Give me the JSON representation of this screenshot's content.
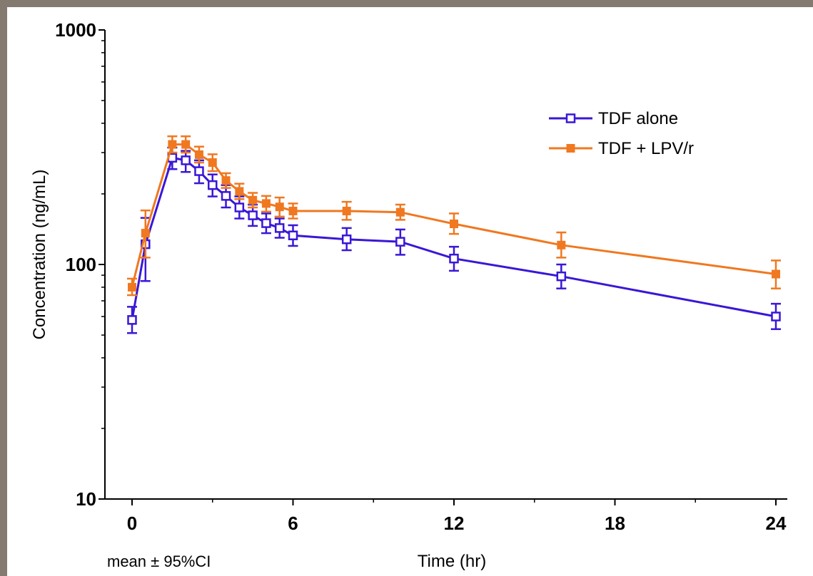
{
  "chart_data": {
    "type": "line",
    "title": "",
    "xlabel": "Time (hr)",
    "ylabel": "Concentration (ng/mL)",
    "note": "mean ± 95%CI",
    "x_scale": "linear",
    "y_scale": "log",
    "xlim": [
      0,
      24
    ],
    "ylim": [
      10,
      1000
    ],
    "x_ticks": [
      0,
      6,
      12,
      18,
      24
    ],
    "x_tick_labels": [
      "0",
      "6",
      "12",
      "18",
      "24"
    ],
    "y_ticks": [
      10,
      100,
      1000
    ],
    "y_tick_labels": [
      "10",
      "100",
      "1000"
    ],
    "grid": false,
    "legend_position": "top-right",
    "series": [
      {
        "name": "TDF alone",
        "color": "#3a17d6",
        "marker": "open-square",
        "points": [
          {
            "x": 0,
            "y": 58,
            "lo": 51,
            "hi": 66
          },
          {
            "x": 0.5,
            "y": 122,
            "lo": 85,
            "hi": 158
          },
          {
            "x": 1.5,
            "y": 285,
            "lo": 255,
            "hi": 315
          },
          {
            "x": 2,
            "y": 278,
            "lo": 248,
            "hi": 305
          },
          {
            "x": 2.5,
            "y": 250,
            "lo": 222,
            "hi": 278
          },
          {
            "x": 3,
            "y": 218,
            "lo": 195,
            "hi": 242
          },
          {
            "x": 3.5,
            "y": 196,
            "lo": 175,
            "hi": 218
          },
          {
            "x": 4,
            "y": 175,
            "lo": 157,
            "hi": 195
          },
          {
            "x": 4.5,
            "y": 162,
            "lo": 146,
            "hi": 180
          },
          {
            "x": 5,
            "y": 150,
            "lo": 136,
            "hi": 165
          },
          {
            "x": 5.5,
            "y": 143,
            "lo": 130,
            "hi": 157
          },
          {
            "x": 6,
            "y": 133,
            "lo": 120,
            "hi": 147
          },
          {
            "x": 8,
            "y": 128,
            "lo": 115,
            "hi": 143
          },
          {
            "x": 10,
            "y": 125,
            "lo": 110,
            "hi": 141
          },
          {
            "x": 12,
            "y": 106,
            "lo": 94,
            "hi": 119
          },
          {
            "x": 16,
            "y": 89,
            "lo": 79,
            "hi": 100
          },
          {
            "x": 24,
            "y": 60,
            "lo": 53,
            "hi": 68
          }
        ]
      },
      {
        "name": "TDF + LPV/r",
        "color": "#f07820",
        "marker": "filled-square",
        "points": [
          {
            "x": 0,
            "y": 80,
            "lo": 74,
            "hi": 87
          },
          {
            "x": 0.5,
            "y": 136,
            "lo": 107,
            "hi": 170
          },
          {
            "x": 1.5,
            "y": 325,
            "lo": 300,
            "hi": 352
          },
          {
            "x": 2,
            "y": 325,
            "lo": 300,
            "hi": 352
          },
          {
            "x": 2.5,
            "y": 294,
            "lo": 272,
            "hi": 318
          },
          {
            "x": 3,
            "y": 272,
            "lo": 250,
            "hi": 295
          },
          {
            "x": 3.5,
            "y": 228,
            "lo": 212,
            "hi": 245
          },
          {
            "x": 4,
            "y": 205,
            "lo": 190,
            "hi": 221
          },
          {
            "x": 4.5,
            "y": 188,
            "lo": 175,
            "hi": 202
          },
          {
            "x": 5,
            "y": 182,
            "lo": 168,
            "hi": 196
          },
          {
            "x": 5.5,
            "y": 176,
            "lo": 160,
            "hi": 193
          },
          {
            "x": 6,
            "y": 169,
            "lo": 157,
            "hi": 182
          },
          {
            "x": 8,
            "y": 169,
            "lo": 155,
            "hi": 185
          },
          {
            "x": 10,
            "y": 167,
            "lo": 155,
            "hi": 180
          },
          {
            "x": 12,
            "y": 149,
            "lo": 135,
            "hi": 165
          },
          {
            "x": 16,
            "y": 121,
            "lo": 107,
            "hi": 137
          },
          {
            "x": 24,
            "y": 91,
            "lo": 79,
            "hi": 104
          }
        ]
      }
    ]
  }
}
